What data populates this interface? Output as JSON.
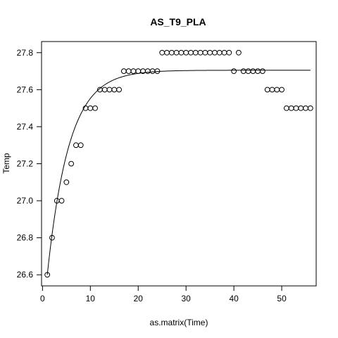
{
  "chart_data": {
    "type": "scatter",
    "title": "AS_T9_PLA",
    "xlabel": "as.matrix(Time)",
    "ylabel": "Temp",
    "xlim": [
      -0.2,
      57.2
    ],
    "ylim": [
      26.54,
      27.86
    ],
    "x_ticks": [
      0,
      10,
      20,
      30,
      40,
      50
    ],
    "y_ticks": [
      26.6,
      26.8,
      27.0,
      27.2,
      27.4,
      27.6,
      27.8
    ],
    "y_tick_labels": [
      "26.6",
      "26.8",
      "27.0",
      "27.2",
      "27.4",
      "27.6",
      "27.8"
    ],
    "grid": false,
    "marker": "open-circle",
    "points": {
      "x": [
        1,
        2,
        3,
        4,
        5,
        6,
        7,
        8,
        9,
        10,
        11,
        12,
        13,
        14,
        15,
        16,
        17,
        18,
        19,
        20,
        21,
        22,
        23,
        24,
        25,
        26,
        27,
        28,
        29,
        30,
        31,
        32,
        33,
        34,
        35,
        36,
        37,
        38,
        39,
        40,
        41,
        42,
        43,
        44,
        45,
        46,
        47,
        48,
        49,
        50,
        51,
        52,
        53,
        54,
        55,
        56
      ],
      "y": [
        26.6,
        26.8,
        27.0,
        27.0,
        27.1,
        27.2,
        27.3,
        27.3,
        27.5,
        27.5,
        27.5,
        27.6,
        27.6,
        27.6,
        27.6,
        27.6,
        27.7,
        27.7,
        27.7,
        27.7,
        27.7,
        27.7,
        27.7,
        27.7,
        27.8,
        27.8,
        27.8,
        27.8,
        27.8,
        27.8,
        27.8,
        27.8,
        27.8,
        27.8,
        27.8,
        27.8,
        27.8,
        27.8,
        27.8,
        27.7,
        27.8,
        27.7,
        27.7,
        27.7,
        27.7,
        27.7,
        27.6,
        27.6,
        27.6,
        27.6,
        27.5,
        27.5,
        27.5,
        27.5,
        27.5,
        27.5
      ]
    },
    "fit_curve": {
      "type": "exponential-saturation",
      "asymptote": 27.705,
      "start_x": 1,
      "start_y": 26.6,
      "rate": 0.22,
      "x_range": [
        1,
        56
      ]
    },
    "colors": {
      "points": "#000000",
      "curve": "#000000",
      "axes": "#000000",
      "background": "#ffffff"
    }
  }
}
